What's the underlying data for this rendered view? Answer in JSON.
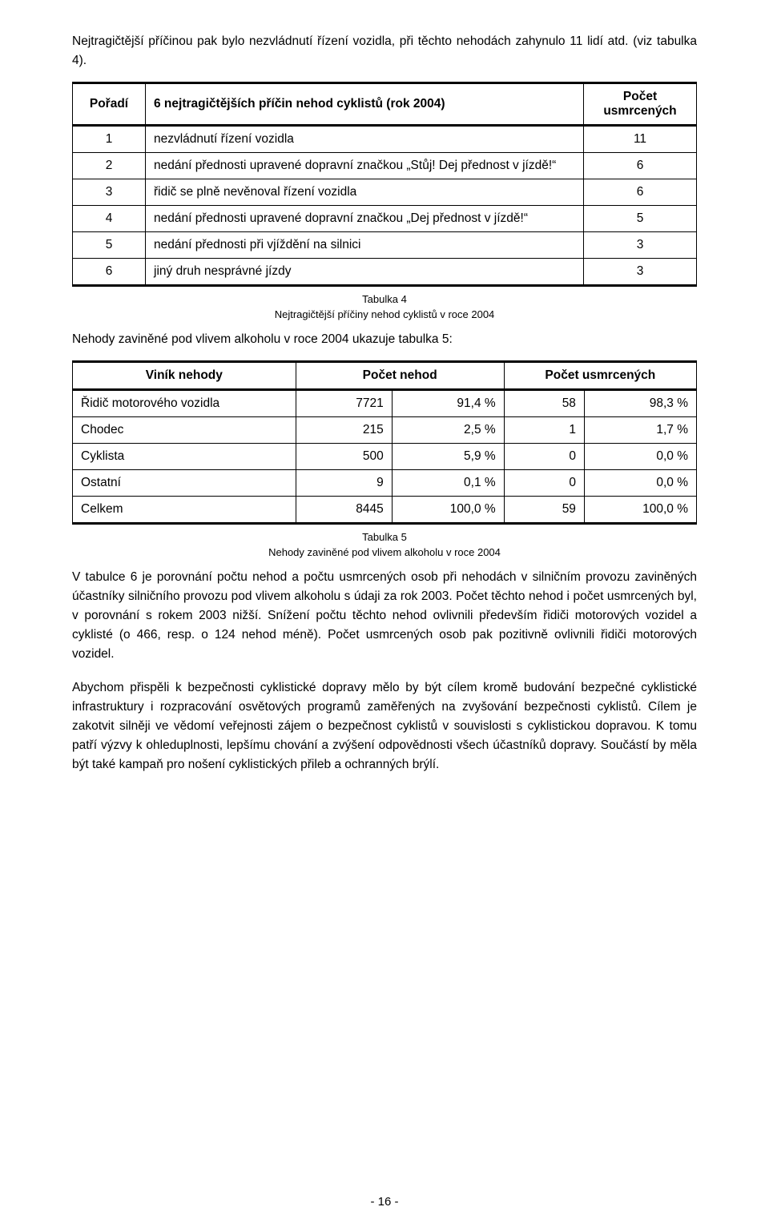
{
  "intro": "Nejtragičtější příčinou pak bylo nezvládnutí řízení vozidla, při těchto nehodách zahynulo 11 lidí atd. (viz tabulka 4).",
  "t1": {
    "header": {
      "poradi": "Pořadí",
      "title": "6 nejtragičtějších příčin nehod cyklistů (rok 2004)",
      "count": "Počet usmrcených"
    },
    "rows": [
      {
        "idx": "1",
        "desc": "nezvládnutí řízení vozidla",
        "val": "11"
      },
      {
        "idx": "2",
        "desc": "nedání přednosti upravené dopravní značkou „Stůj! Dej přednost v jízdě!“",
        "val": "6"
      },
      {
        "idx": "3",
        "desc": "řidič se plně nevěnoval řízení vozidla",
        "val": "6"
      },
      {
        "idx": "4",
        "desc": "nedání přednosti upravené dopravní značkou „Dej přednost v jízdě!“",
        "val": "5"
      },
      {
        "idx": "5",
        "desc": "nedání přednosti při vjíždění na silnici",
        "val": "3"
      },
      {
        "idx": "6",
        "desc": "jiný druh nesprávné jízdy",
        "val": "3"
      }
    ]
  },
  "caption4a": "Tabulka 4",
  "caption4b": "Nejtragičtější příčiny nehod cyklistů v roce 2004",
  "mid": "Nehody zaviněné pod vlivem alkoholu v roce 2004 ukazuje tabulka 5:",
  "t2": {
    "header": {
      "vinik": "Viník nehody",
      "pn": "Počet nehod",
      "pu": "Počet usmrcených"
    },
    "rows": [
      {
        "label": "Řidič motorového vozidla",
        "n": "7721",
        "np": "91,4 %",
        "u": "58",
        "up": "98,3 %"
      },
      {
        "label": "Chodec",
        "n": "215",
        "np": "2,5 %",
        "u": "1",
        "up": "1,7 %"
      },
      {
        "label": "Cyklista",
        "n": "500",
        "np": "5,9 %",
        "u": "0",
        "up": "0,0 %"
      },
      {
        "label": "Ostatní",
        "n": "9",
        "np": "0,1 %",
        "u": "0",
        "up": "0,0 %"
      },
      {
        "label": "Celkem",
        "n": "8445",
        "np": "100,0 %",
        "u": "59",
        "up": "100,0 %"
      }
    ]
  },
  "caption5a": "Tabulka 5",
  "caption5b": "Nehody zaviněné pod vlivem alkoholu v roce 2004",
  "para1": "V tabulce 6 je porovnání počtu nehod a počtu usmrcených osob při nehodách v silničním provozu zaviněných účastníky silničního provozu pod vlivem alkoholu s údaji za rok 2003. Počet těchto nehod i počet usmrcených byl, v porovnání s rokem 2003 nižší. Snížení počtu těchto nehod ovlivnili především řidiči motorových vozidel a cyklisté (o 466, resp. o 124 nehod méně). Počet usmrcených osob pak pozitivně ovlivnili řidiči motorových vozidel.",
  "para2": "Abychom přispěli k bezpečnosti cyklistické dopravy mělo by být cílem kromě budování bezpečné cyklistické infrastruktury i rozpracování osvětových programů zaměřených na zvyšování bezpečnosti cyklistů. Cílem je zakotvit silněji ve vědomí veřejnosti zájem o bezpečnost cyklistů v souvislosti s cyklistickou dopravou. K tomu patří výzvy k ohleduplnosti, lepšímu chování a zvýšení odpovědnosti všech účastníků dopravy. Součástí by měla být také kampaň pro nošení cyklistických přileb a ochranných brýlí.",
  "pagenum": "- 16 -"
}
